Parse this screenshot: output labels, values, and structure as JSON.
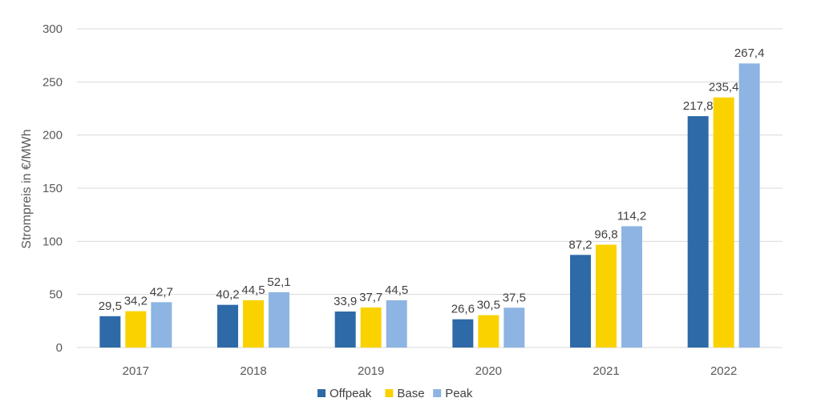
{
  "chart_data": {
    "type": "bar",
    "title": "",
    "xlabel": "",
    "ylabel": "Strompreis in €/MWh",
    "ylim": [
      0,
      300
    ],
    "yticks": [
      0,
      50,
      100,
      150,
      200,
      250,
      300
    ],
    "grid": true,
    "legend_position": "bottom",
    "categories": [
      "2017",
      "2018",
      "2019",
      "2020",
      "2021",
      "2022"
    ],
    "series": [
      {
        "name": "Offpeak",
        "color": "#2e6aa8",
        "values": [
          29.5,
          40.2,
          33.9,
          26.6,
          87.2,
          217.8
        ],
        "labels": [
          "29,5",
          "40,2",
          "33,9",
          "26,6",
          "87,2",
          "217,8"
        ]
      },
      {
        "name": "Base",
        "color": "#f9d200",
        "values": [
          34.2,
          44.5,
          37.7,
          30.5,
          96.8,
          235.4
        ],
        "labels": [
          "34,2",
          "44,5",
          "37,7",
          "30,5",
          "96,8",
          "235,4"
        ]
      },
      {
        "name": "Peak",
        "color": "#8db4e2",
        "values": [
          42.7,
          52.1,
          44.5,
          37.5,
          114.2,
          267.4
        ],
        "labels": [
          "42,7",
          "52,1",
          "44,5",
          "37,5",
          "114,2",
          "267,4"
        ]
      }
    ]
  }
}
